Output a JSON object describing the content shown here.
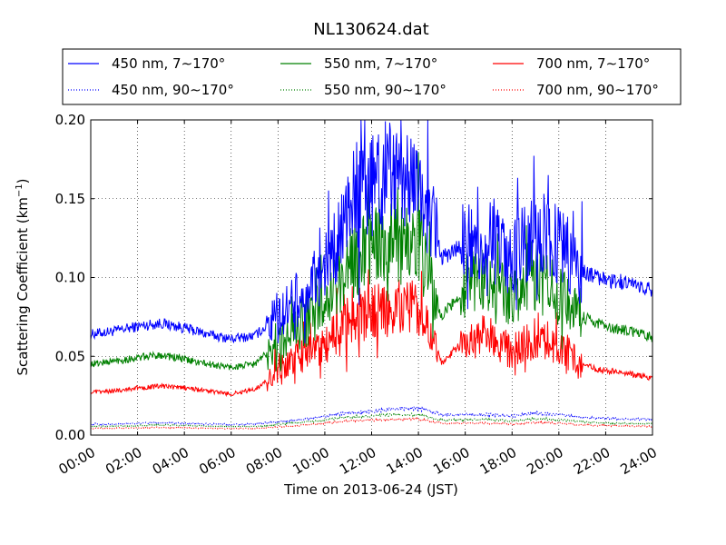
{
  "chart_data": {
    "type": "line",
    "title": "NL130624.dat",
    "xlabel": "Time on 2013-06-24 (JST)",
    "ylabel_main": "Scattering Coefficient (km",
    "ylabel_sup": "−1",
    "ylabel_end": ")",
    "xlim": [
      0,
      24
    ],
    "ylim": [
      0,
      0.2
    ],
    "x_ticks": [
      0,
      2,
      4,
      6,
      8,
      10,
      12,
      14,
      16,
      18,
      20,
      22,
      24
    ],
    "x_tick_labels": [
      "00:00",
      "02:00",
      "04:00",
      "06:00",
      "08:00",
      "10:00",
      "12:00",
      "14:00",
      "16:00",
      "18:00",
      "20:00",
      "22:00",
      "24:00"
    ],
    "y_ticks": [
      0,
      0.05,
      0.1,
      0.15,
      0.2
    ],
    "y_tick_labels": [
      "0.00",
      "0.05",
      "0.10",
      "0.15",
      "0.20"
    ],
    "grid": true,
    "legend_placement": "top",
    "series": [
      {
        "name": "450 nm, 7∼170°",
        "color": "#0000ff",
        "style": "solid",
        "x": [
          0,
          1,
          2,
          3,
          4,
          5,
          6,
          7,
          8,
          9,
          10,
          11,
          12,
          13,
          14,
          15,
          16,
          17,
          18,
          19,
          20,
          21,
          22,
          23,
          24
        ],
        "values": [
          0.064,
          0.066,
          0.069,
          0.071,
          0.068,
          0.064,
          0.061,
          0.063,
          0.075,
          0.088,
          0.104,
          0.142,
          0.16,
          0.168,
          0.164,
          0.112,
          0.122,
          0.125,
          0.11,
          0.128,
          0.122,
          0.104,
          0.098,
          0.097,
          0.092
        ]
      },
      {
        "name": "450 nm, 90∼170°",
        "color": "#0000ff",
        "style": "dotted",
        "x": [
          0,
          1,
          2,
          3,
          4,
          5,
          6,
          7,
          8,
          9,
          10,
          11,
          12,
          13,
          14,
          15,
          16,
          17,
          18,
          19,
          20,
          21,
          22,
          23,
          24
        ],
        "values": [
          0.007,
          0.007,
          0.0075,
          0.008,
          0.0075,
          0.007,
          0.0068,
          0.007,
          0.0085,
          0.01,
          0.012,
          0.014,
          0.015,
          0.017,
          0.017,
          0.013,
          0.013,
          0.013,
          0.012,
          0.014,
          0.013,
          0.011,
          0.011,
          0.01,
          0.01
        ]
      },
      {
        "name": "550 nm, 7∼170°",
        "color": "#008000",
        "style": "solid",
        "x": [
          0,
          1,
          2,
          3,
          4,
          5,
          6,
          7,
          8,
          9,
          10,
          11,
          12,
          13,
          14,
          15,
          16,
          17,
          18,
          19,
          20,
          21,
          22,
          23,
          24
        ],
        "values": [
          0.045,
          0.047,
          0.049,
          0.051,
          0.048,
          0.045,
          0.043,
          0.045,
          0.058,
          0.068,
          0.081,
          0.108,
          0.118,
          0.125,
          0.122,
          0.075,
          0.095,
          0.097,
          0.085,
          0.1,
          0.093,
          0.075,
          0.069,
          0.066,
          0.062
        ]
      },
      {
        "name": "550 nm, 90∼170°",
        "color": "#008000",
        "style": "dotted",
        "x": [
          0,
          1,
          2,
          3,
          4,
          5,
          6,
          7,
          8,
          9,
          10,
          11,
          12,
          13,
          14,
          15,
          16,
          17,
          18,
          19,
          20,
          21,
          22,
          23,
          24
        ],
        "values": [
          0.0055,
          0.0056,
          0.006,
          0.0063,
          0.006,
          0.0056,
          0.0053,
          0.0055,
          0.0068,
          0.008,
          0.0095,
          0.0115,
          0.012,
          0.013,
          0.013,
          0.0095,
          0.0098,
          0.0098,
          0.009,
          0.0105,
          0.0098,
          0.0085,
          0.0078,
          0.0074,
          0.0072
        ]
      },
      {
        "name": "700 nm, 7∼170°",
        "color": "#ff0000",
        "style": "solid",
        "x": [
          0,
          1,
          2,
          3,
          4,
          5,
          6,
          7,
          8,
          9,
          10,
          11,
          12,
          13,
          14,
          15,
          16,
          17,
          18,
          19,
          20,
          21,
          22,
          23,
          24
        ],
        "values": [
          0.027,
          0.028,
          0.03,
          0.031,
          0.03,
          0.028,
          0.026,
          0.029,
          0.04,
          0.05,
          0.058,
          0.072,
          0.078,
          0.082,
          0.081,
          0.046,
          0.06,
          0.063,
          0.052,
          0.062,
          0.055,
          0.044,
          0.041,
          0.039,
          0.036
        ]
      },
      {
        "name": "700 nm, 90∼170°",
        "color": "#ff0000",
        "style": "dotted",
        "x": [
          0,
          1,
          2,
          3,
          4,
          5,
          6,
          7,
          8,
          9,
          10,
          11,
          12,
          13,
          14,
          15,
          16,
          17,
          18,
          19,
          20,
          21,
          22,
          23,
          24
        ],
        "values": [
          0.0043,
          0.0044,
          0.0046,
          0.0048,
          0.0046,
          0.0043,
          0.0041,
          0.0043,
          0.0052,
          0.0062,
          0.0075,
          0.009,
          0.0095,
          0.01,
          0.0102,
          0.0075,
          0.0075,
          0.0075,
          0.007,
          0.008,
          0.0075,
          0.0065,
          0.006,
          0.0057,
          0.0055
        ]
      }
    ]
  }
}
